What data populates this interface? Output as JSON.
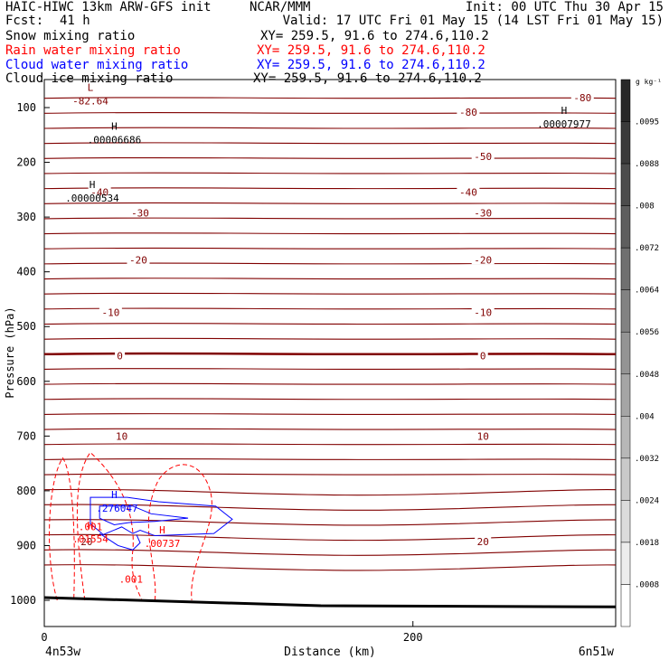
{
  "header": {
    "model_title": "HAIC-HIWC 13km ARW-GFS init",
    "org": "NCAR/MMM",
    "init": "Init: 00 UTC Thu 30 Apr 15",
    "fcst_label": "Fcst:",
    "fcst_value": "41 h",
    "valid": "Valid: 17 UTC Fri 01 May 15 (14 LST Fri 01 May 15)",
    "fields": [
      {
        "name": "Snow mixing ratio",
        "xy": "XY= 259.5, 91.6 to 274.6,110.2",
        "color": "#000000"
      },
      {
        "name": "Rain water mixing ratio",
        "xy": "XY= 259.5, 91.6 to 274.6,110.2",
        "color": "#ff0000"
      },
      {
        "name": "Cloud water mixing ratio",
        "xy": "XY= 259.5, 91.6 to 274.6,110.2",
        "color": "#0000ff"
      },
      {
        "name": "Cloud ice mixing ratio",
        "xy": "XY= 259.5, 91.6 to 274.6,110.2",
        "color": "#000000"
      }
    ]
  },
  "chart_data": {
    "type": "contour-cross-section",
    "xlabel": "Distance (km)",
    "ylabel": "Pressure (hPa)",
    "x_ticks": [
      0,
      200
    ],
    "y_ticks": [
      100,
      200,
      300,
      400,
      500,
      600,
      700,
      800,
      900,
      1000
    ],
    "xlim": [
      0,
      310
    ],
    "ylim": [
      1050,
      40
    ],
    "start_label": "4n53w",
    "end_label": "6n51w",
    "colorbar": {
      "unit": "g kg⁻¹",
      "labels": [
        ".0095",
        ".0088",
        ".008",
        ".0072",
        ".0064",
        ".0056",
        ".0048",
        ".004",
        ".0032",
        ".0024",
        ".0018",
        ".0008"
      ]
    },
    "temperature_contours": {
      "color": "#800000",
      "labels": [
        {
          "text": "-80",
          "x": 292,
          "p": 82
        },
        {
          "text": "-80",
          "x": 230,
          "p": 108
        },
        {
          "text": "-50",
          "x": 238,
          "p": 189
        },
        {
          "text": "-40",
          "x": 30,
          "p": 254
        },
        {
          "text": "-40",
          "x": 230,
          "p": 254
        },
        {
          "text": "-30",
          "x": 52,
          "p": 292
        },
        {
          "text": "-30",
          "x": 238,
          "p": 292
        },
        {
          "text": "-20",
          "x": 51,
          "p": 378
        },
        {
          "text": "-20",
          "x": 238,
          "p": 378
        },
        {
          "text": "-10",
          "x": 36,
          "p": 474
        },
        {
          "text": "-10",
          "x": 238,
          "p": 474
        },
        {
          "text": "0",
          "x": 41,
          "p": 553
        },
        {
          "text": "0",
          "x": 238,
          "p": 553
        },
        {
          "text": "10",
          "x": 42,
          "p": 700
        },
        {
          "text": "10",
          "x": 238,
          "p": 700
        },
        {
          "text": "20",
          "x": 23,
          "p": 893
        },
        {
          "text": "20",
          "x": 238,
          "p": 893
        }
      ],
      "extrema": [
        {
          "kind": "L",
          "value": "-82.64",
          "x": 25,
          "p": 83
        }
      ]
    },
    "snow_extrema": [
      {
        "kind": "H",
        "value": ".00006686",
        "x": 38,
        "p": 154
      },
      {
        "kind": "H",
        "value": ".00000534",
        "x": 26,
        "p": 260
      },
      {
        "kind": "H",
        "value": ".00007977",
        "x": 282,
        "p": 125
      }
    ],
    "rain_extrema": [
      {
        "kind": "H",
        "value": ".01554",
        "x": 25,
        "p": 883
      },
      {
        "kind": "H",
        "value": ".00737",
        "x": 64,
        "p": 891
      }
    ],
    "rain_contour_labels": [
      {
        "text": ".001",
        "x": 25,
        "p": 865
      },
      {
        "text": ".001",
        "x": 47,
        "p": 961
      }
    ],
    "cloud_water_extrema": [
      {
        "kind": "H",
        "value": ".276047",
        "x": 38,
        "p": 827
      }
    ],
    "terrain_pressure": [
      {
        "x": 0,
        "p": 995
      },
      {
        "x": 150,
        "p": 1010
      },
      {
        "x": 310,
        "p": 1012
      }
    ]
  }
}
